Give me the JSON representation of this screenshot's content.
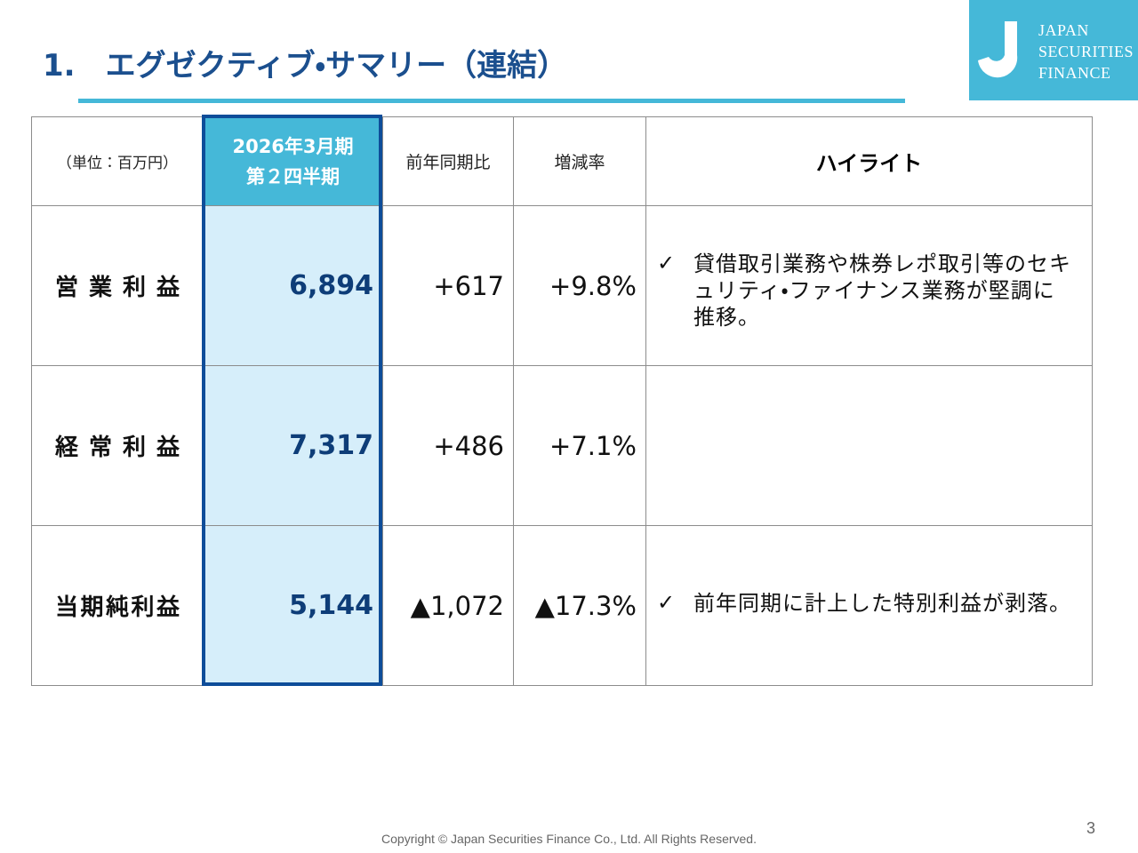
{
  "header": {
    "title": "1.　エグゼクティブ・サマリー（連結）"
  },
  "logo": {
    "lines": [
      "JAPAN",
      "SECURITIES",
      "FINANCE"
    ]
  },
  "table": {
    "header": {
      "unit": "（単位：百万円）",
      "period": [
        "2026年3月期",
        "第２四半期"
      ],
      "change": "前年同期比",
      "rate": "増減率",
      "highlight": "ハイライト"
    },
    "rows": [
      {
        "label": "営業利益",
        "value": "6,894",
        "change": "+617",
        "rate": "+9.8%",
        "highlight": {
          "mark": "✓",
          "text": "貸借取引業務や株券レポ取引等のセキュリティ・ファイナンス業務が堅調に推移。"
        }
      },
      {
        "label": "経常利益",
        "value": "7,317",
        "change": "+486",
        "rate": "+7.1%"
      },
      {
        "label": "当期純利益",
        "value": "5,144",
        "change": "▲1,072",
        "rate": "▲17.3%",
        "highlight": {
          "mark": "✓",
          "text": "前年同期に計上した特別利益が剥落。"
        }
      }
    ]
  },
  "footer": {
    "copyright": "Copyright © Japan Securities Finance Co., Ltd. All Rights Reserved.",
    "page": "3"
  }
}
